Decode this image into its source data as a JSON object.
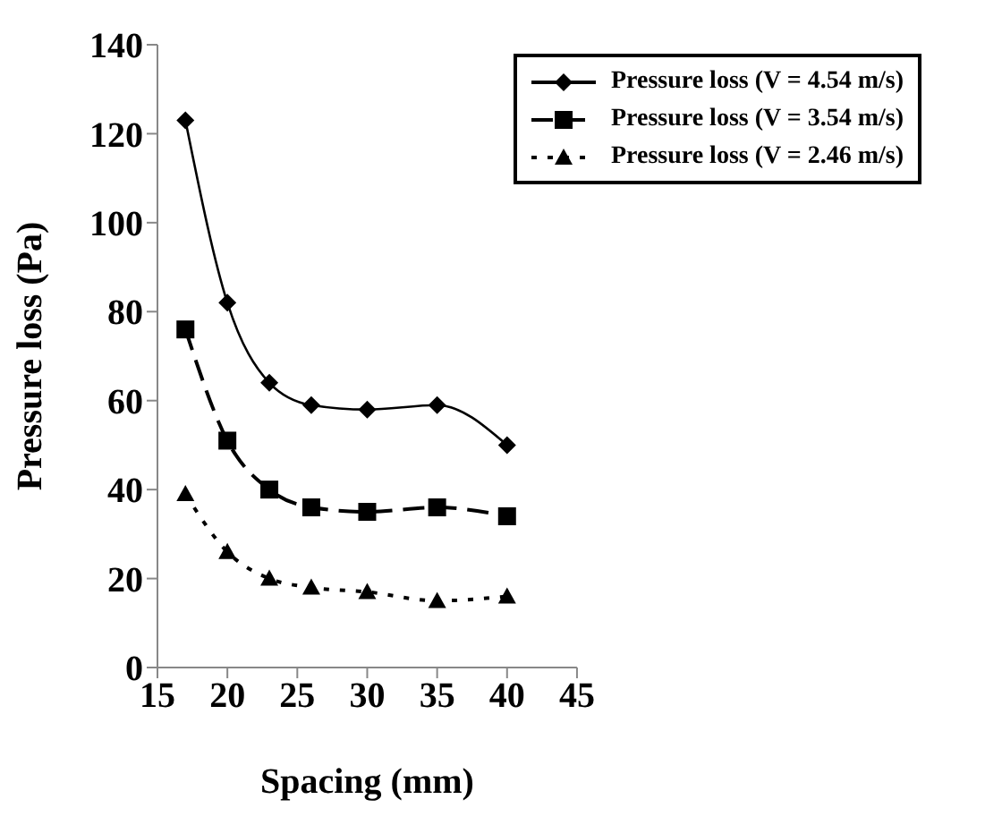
{
  "chart_data": {
    "type": "line",
    "xlabel": "Spacing (mm)",
    "ylabel": "Pressure loss (Pa)",
    "x": [
      17,
      20,
      23,
      26,
      30,
      35,
      40
    ],
    "series": [
      {
        "name": "Pressure loss (V = 4.54 m/s)",
        "color": "#000000",
        "marker": "diamond",
        "line_style": "solid",
        "values": [
          123,
          82,
          64,
          59,
          58,
          59,
          50
        ]
      },
      {
        "name": "Pressure loss (V = 3.54 m/s)",
        "color": "#000000",
        "marker": "square",
        "line_style": "dashed",
        "values": [
          76,
          51,
          40,
          36,
          35,
          36,
          34
        ]
      },
      {
        "name": "Pressure loss (V = 2.46 m/s)",
        "color": "#000000",
        "marker": "triangle",
        "line_style": "dotted",
        "values": [
          39,
          26,
          20,
          18,
          17,
          15,
          16
        ]
      }
    ],
    "xlim": [
      15,
      45
    ],
    "xticks": [
      15,
      20,
      25,
      30,
      35,
      40,
      45
    ],
    "ylim": [
      0,
      140
    ],
    "yticks": [
      0,
      20,
      40,
      60,
      80,
      100,
      120,
      140
    ],
    "grid": false,
    "legend": "top right"
  }
}
